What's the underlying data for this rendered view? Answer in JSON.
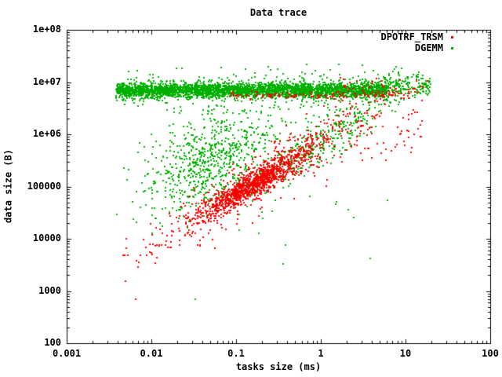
{
  "chart_data": {
    "type": "scatter",
    "title": "Data trace",
    "xlabel": "tasks size (ms)",
    "ylabel": "data size (B)",
    "xscale": "log",
    "yscale": "log",
    "xlim": [
      0.001,
      100
    ],
    "ylim": [
      100,
      100000000
    ],
    "x_ticks": [
      "0.001",
      "0.01",
      "0.1",
      "1",
      "10",
      "100"
    ],
    "y_ticks": [
      "1e+08",
      "1e+07",
      "1e+06",
      "100000",
      "10000",
      "1000",
      "100"
    ],
    "grid": false,
    "legend_position": "top-right-inside",
    "marker": "dot",
    "frame_color": "#000000",
    "series": [
      {
        "name": "DPOTRF_TRSM",
        "color": "#ff0000",
        "distribution_log10": [
          {
            "kind": "line",
            "n": 1050,
            "x_mean": -0.82,
            "x_sd": 0.33,
            "x_min": -1.6,
            "x_max": 0.3,
            "slope": 0.96,
            "intercept": 5.82,
            "y_sd": 0.12
          },
          {
            "kind": "line",
            "n": 420,
            "x_mean": -0.45,
            "x_sd": 0.68,
            "x_min": -2.2,
            "x_max": 0.78,
            "slope": 0.96,
            "intercept": 5.82,
            "y_sd": 0.3
          },
          {
            "kind": "line",
            "n": 55,
            "x_mean": -1.75,
            "x_sd": 0.35,
            "x_min": -2.35,
            "x_max": -1.15,
            "slope": 0.96,
            "intercept": 5.82,
            "y_sd": 0.22
          },
          {
            "kind": "band",
            "n": 130,
            "x_min": -1.1,
            "x_max": 1.05,
            "y_mean": 6.75,
            "y_sd": 0.035
          },
          {
            "kind": "band",
            "n": 45,
            "x_min": 0.2,
            "x_max": 1.28,
            "y_mean": 6.9,
            "y_sd": 0.13
          },
          {
            "kind": "box",
            "n": 48,
            "x_min": 0.3,
            "x_max": 1.22,
            "y_min": 5.45,
            "y_max": 6.6
          }
        ],
        "outliers": [
          [
            0.0065,
            700
          ]
        ]
      },
      {
        "name": "DGEMM",
        "color": "#00b000",
        "distribution_log10": [
          {
            "kind": "band",
            "n": 3200,
            "x_min": -2.42,
            "x_max": 0.78,
            "y_mean": 6.84,
            "y_sd": 0.07
          },
          {
            "kind": "band",
            "n": 380,
            "x_min": -2.35,
            "x_max": 0.95,
            "y_mean": 6.86,
            "y_sd": 0.2
          },
          {
            "kind": "band",
            "n": 170,
            "x_min": 0.75,
            "x_max": 1.3,
            "y_mean": 6.93,
            "y_sd": 0.12
          },
          {
            "kind": "gauss2",
            "n": 680,
            "cx": -1.3,
            "cy": 5.45,
            "sx": 0.4,
            "sy": 0.48,
            "rho": 0.5
          },
          {
            "kind": "line",
            "n": 300,
            "x_mean": -0.05,
            "x_sd": 0.42,
            "x_min": -1.2,
            "x_max": 0.75,
            "slope": 0.9,
            "intercept": 5.85,
            "y_sd": 0.22
          },
          {
            "kind": "box",
            "n": 70,
            "x_min": -1.85,
            "x_max": 0.7,
            "y_min": 5.95,
            "y_max": 6.55
          },
          {
            "kind": "box",
            "n": 14,
            "x_min": -1.7,
            "x_max": 0.8,
            "y_min": 3.5,
            "y_max": 4.9
          }
        ],
        "outliers": [
          [
            0.033,
            700
          ]
        ]
      }
    ]
  }
}
